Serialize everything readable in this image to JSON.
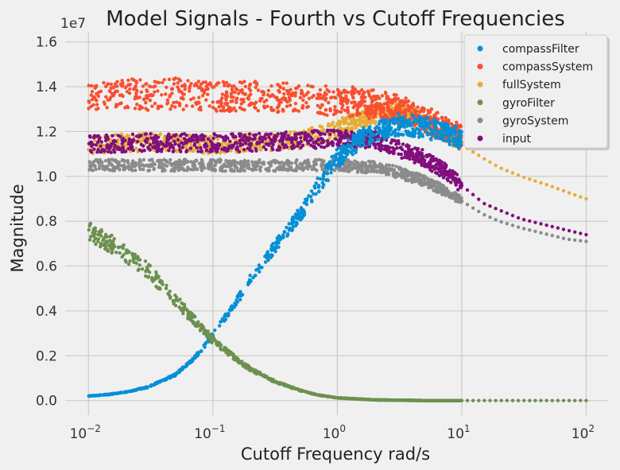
{
  "chart_data": {
    "type": "scatter",
    "title": "Model Signals - Fourth vs Cutoff Frequencies",
    "xlabel": "Cutoff Frequency rad/s",
    "ylabel": "Magnitude",
    "y_offset_label": "1e7",
    "xscale": "log",
    "xlim": [
      0.0065,
      150
    ],
    "ylim": [
      -650000,
      16450000
    ],
    "grid": true,
    "legend_position": "top-right",
    "x_ticks": [
      {
        "value": 0.01,
        "base": "10",
        "exp": "−2"
      },
      {
        "value": 0.1,
        "base": "10",
        "exp": "−1"
      },
      {
        "value": 1,
        "base": "10",
        "exp": "0"
      },
      {
        "value": 10,
        "base": "10",
        "exp": "1"
      },
      {
        "value": 100,
        "base": "10",
        "exp": "2"
      }
    ],
    "y_ticks": [
      {
        "value": 0,
        "label": "0.0"
      },
      {
        "value": 2000000,
        "label": "0.2"
      },
      {
        "value": 4000000,
        "label": "0.4"
      },
      {
        "value": 6000000,
        "label": "0.6"
      },
      {
        "value": 8000000,
        "label": "0.8"
      },
      {
        "value": 10000000,
        "label": "1.0"
      },
      {
        "value": 12000000,
        "label": "1.2"
      },
      {
        "value": 14000000,
        "label": "1.4"
      },
      {
        "value": 16000000,
        "label": "1.6"
      }
    ],
    "series": [
      {
        "name": "compassFilter",
        "color": "#008fd5",
        "x": [
          0.01,
          0.015,
          0.02,
          0.03,
          0.05,
          0.07,
          0.1,
          0.15,
          0.2,
          0.3,
          0.5,
          0.7,
          1,
          1.5,
          2,
          3,
          5,
          7,
          10
        ],
        "y": [
          200000,
          280000,
          380000,
          600000,
          1150000,
          1850000,
          2900000,
          4300000,
          5400000,
          6700000,
          8300000,
          9600000,
          10800000,
          11600000,
          12000000,
          12300000,
          12200000,
          12000000,
          11700000
        ]
      },
      {
        "name": "compassSystem",
        "color": "#fc4f30",
        "x": [
          0.01,
          0.015,
          0.02,
          0.03,
          0.05,
          0.07,
          0.1,
          0.15,
          0.2,
          0.3,
          0.5,
          0.7,
          1,
          1.5,
          2,
          3,
          5,
          7,
          10
        ],
        "y": [
          13500000,
          13600000,
          13700000,
          13600000,
          13700000,
          13600000,
          13500000,
          13600000,
          13600000,
          13500000,
          13500000,
          13400000,
          13400000,
          13300000,
          13200000,
          13000000,
          12600000,
          12200000,
          11700000
        ]
      },
      {
        "name": "fullSystem",
        "color": "#e5ae38",
        "x": [
          0.01,
          0.02,
          0.05,
          0.1,
          0.2,
          0.5,
          1,
          2,
          3,
          5,
          7,
          10,
          15,
          20,
          30,
          50,
          70,
          100
        ],
        "y": [
          11400000,
          11500000,
          11500000,
          11400000,
          11500000,
          11600000,
          12100000,
          12800000,
          12900000,
          12500000,
          12000000,
          11400000,
          10800000,
          10400000,
          10000000,
          9600000,
          9300000,
          9000000
        ]
      },
      {
        "name": "gyroFilter",
        "color": "#6d904f",
        "x": [
          0.01,
          0.015,
          0.02,
          0.03,
          0.05,
          0.07,
          0.1,
          0.15,
          0.2,
          0.3,
          0.5,
          0.7,
          1,
          2,
          5,
          10,
          20,
          50,
          100
        ],
        "y": [
          7500000,
          7000000,
          6500000,
          5800000,
          4500000,
          3600000,
          2700000,
          1900000,
          1400000,
          900000,
          450000,
          250000,
          120000,
          30000,
          0,
          0,
          0,
          0,
          0
        ]
      },
      {
        "name": "gyroSystem",
        "color": "#8b8b8b",
        "x": [
          0.01,
          0.02,
          0.05,
          0.1,
          0.2,
          0.5,
          1,
          2,
          3,
          5,
          7,
          10,
          15,
          20,
          30,
          50,
          70,
          100
        ],
        "y": [
          10500000,
          10500000,
          10500000,
          10500000,
          10500000,
          10500000,
          10500000,
          10400000,
          10200000,
          9800000,
          9400000,
          8900000,
          8300000,
          8000000,
          7700000,
          7400000,
          7200000,
          7100000
        ]
      },
      {
        "name": "input",
        "color": "#810f7c",
        "x": [
          0.01,
          0.02,
          0.05,
          0.1,
          0.2,
          0.5,
          1,
          2,
          3,
          5,
          7,
          10,
          15,
          20,
          30,
          50,
          70,
          100
        ],
        "y": [
          11400000,
          11500000,
          11500000,
          11500000,
          11500000,
          11600000,
          11700000,
          11600000,
          11300000,
          10800000,
          10300000,
          9600000,
          8800000,
          8500000,
          8100000,
          7800000,
          7600000,
          7400000
        ]
      }
    ]
  }
}
